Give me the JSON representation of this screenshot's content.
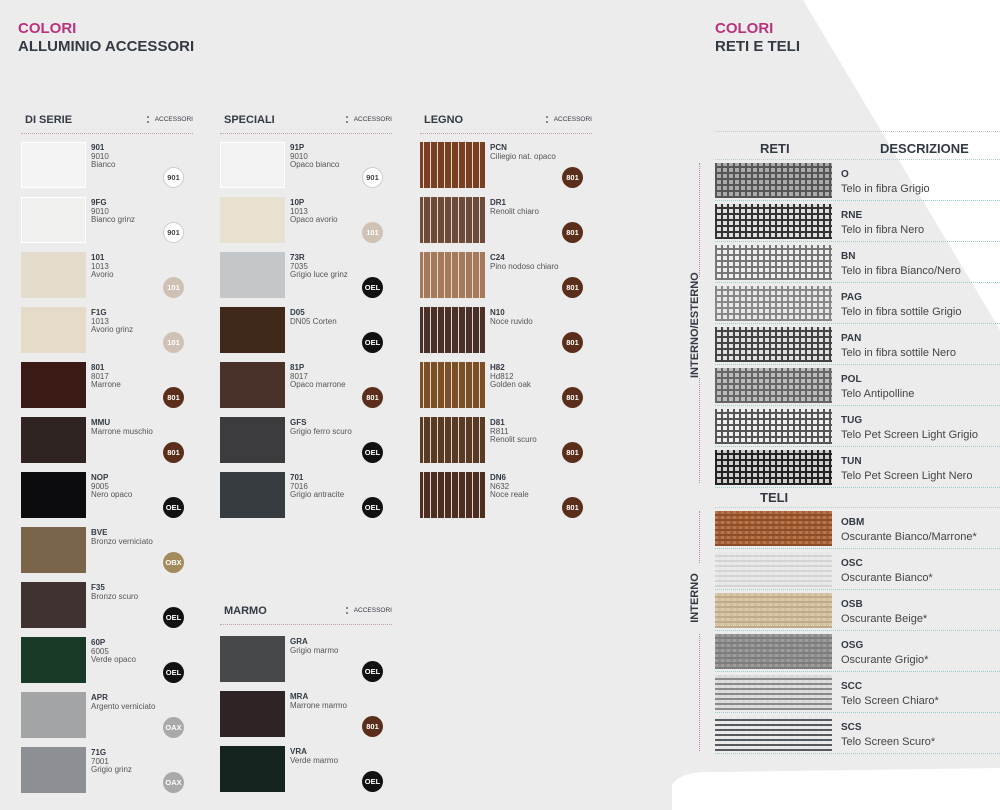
{
  "left": {
    "title1": "COLORI",
    "title2": "ALLUMINIO ACCESSORI"
  },
  "right": {
    "title1": "COLORI",
    "title2": "RETI E TELI",
    "reti_head": "RETI",
    "desc_head": "DESCRIZIONE",
    "teli_head": "TELI",
    "label_int_est": "INTERNO/ESTERNO",
    "label_int": "INTERNO"
  },
  "accessori_label": "ACCESSORI",
  "badge_colors": {
    "901": "#ffffff",
    "101": "#cfc2b4",
    "801": "#5a2e1a",
    "OEL": "#111111",
    "OBX": "#a38b5e",
    "OAX": "#a9a9a9"
  },
  "columns": [
    {
      "heading": "DI SERIE",
      "items": [
        {
          "code": "901",
          "ral": "9010",
          "name": "Bianco",
          "color": "#f4f4f4",
          "badge": "901"
        },
        {
          "code": "9FG",
          "ral": "9010",
          "name": "Bianco grinz",
          "color": "#f0f0ee",
          "badge": "901"
        },
        {
          "code": "101",
          "ral": "1013",
          "name": "Avorio",
          "color": "#e4dccc",
          "badge": "101"
        },
        {
          "code": "F1G",
          "ral": "1013",
          "name": "Avorio grinz",
          "color": "#e6dac8",
          "badge": "101"
        },
        {
          "code": "801",
          "ral": "8017",
          "name": "Marrone",
          "color": "#3a1a14",
          "badge": "801"
        },
        {
          "code": "MMU",
          "ral": "",
          "name": "Marrone muschio",
          "color": "#2f2422",
          "badge": "801"
        },
        {
          "code": "NOP",
          "ral": "9005",
          "name": "Nero opaco",
          "color": "#0c0c0e",
          "badge": "OEL"
        },
        {
          "code": "BVE",
          "ral": "",
          "name": "Bronzo verniciato",
          "color": "#7a654a",
          "badge": "OBX"
        },
        {
          "code": "F35",
          "ral": "",
          "name": "Bronzo scuro",
          "color": "#3f3230",
          "badge": "OEL"
        },
        {
          "code": "60P",
          "ral": "6005",
          "name": "Verde opaco",
          "color": "#1a3a28",
          "badge": "OEL"
        },
        {
          "code": "APR",
          "ral": "",
          "name": "Argento verniciato",
          "color": "#a3a4a6",
          "badge": "OAX"
        },
        {
          "code": "71G",
          "ral": "7001",
          "name": "Grigio grinz",
          "color": "#8c8f93",
          "badge": "OAX"
        }
      ]
    },
    {
      "heading": "SPECIALI",
      "items": [
        {
          "code": "91P",
          "ral": "9010",
          "name": "Opaco bianco",
          "color": "#f3f3f3",
          "badge": "901"
        },
        {
          "code": "10P",
          "ral": "1013",
          "name": "Opaco avorio",
          "color": "#e8e1cf",
          "badge": "101"
        },
        {
          "code": "73R",
          "ral": "7035",
          "name": "Grigio luce grinz",
          "color": "#c4c7c9",
          "badge": "OEL"
        },
        {
          "code": "D05",
          "ral": "",
          "name": "DN05 Corten",
          "color": "#40281a",
          "badge": "OEL"
        },
        {
          "code": "81P",
          "ral": "8017",
          "name": "Opaco marrone",
          "color": "#4a322a",
          "badge": "801"
        },
        {
          "code": "GFS",
          "ral": "",
          "name": "Grigio ferro scuro",
          "color": "#3c3c3e",
          "badge": "OEL"
        },
        {
          "code": "701",
          "ral": "7016",
          "name": "Grigio antracite",
          "color": "#363c40",
          "badge": "OEL"
        }
      ]
    },
    {
      "heading": "LEGNO",
      "items": [
        {
          "code": "PCN",
          "ral": "",
          "name": "Ciliegio nat. opaco",
          "color": "#7a3e20",
          "badge": "801"
        },
        {
          "code": "DR1",
          "ral": "",
          "name": "Renolit chiaro",
          "color": "#6e4a38",
          "badge": "801"
        },
        {
          "code": "C24",
          "ral": "",
          "name": "Pino nodoso chiaro",
          "color": "#a67a58",
          "badge": "801"
        },
        {
          "code": "N10",
          "ral": "",
          "name": "Noce ruvido",
          "color": "#4a3026",
          "badge": "801"
        },
        {
          "code": "H82",
          "ral": "Hd812",
          "name": "Golden oak",
          "color": "#7c5024",
          "badge": "801"
        },
        {
          "code": "D81",
          "ral": "R811",
          "name": "Renolit scuro",
          "color": "#5a3a22",
          "badge": "801"
        },
        {
          "code": "DN6",
          "ral": "N632",
          "name": "Noce reale",
          "color": "#4e2e1e",
          "badge": "801"
        }
      ]
    },
    {
      "heading": "MARMO",
      "items": [
        {
          "code": "GRA",
          "ral": "",
          "name": "Grigio marmo",
          "color": "#464849",
          "badge": "OEL"
        },
        {
          "code": "MRA",
          "ral": "",
          "name": "Marrone marmo",
          "color": "#2e2426",
          "badge": "801"
        },
        {
          "code": "VRA",
          "ral": "",
          "name": "Verde marmo",
          "color": "#16241f",
          "badge": "OEL"
        }
      ]
    }
  ],
  "reti": [
    {
      "code": "O",
      "desc": "Telo in fibra Grigio",
      "color": "#555",
      "bg": "#aaa"
    },
    {
      "code": "RNE",
      "desc": "Telo in fibra Nero",
      "color": "#333",
      "bg": "#ddd"
    },
    {
      "code": "BN",
      "desc": "Telo in fibra Bianco/Nero",
      "color": "#777",
      "bg": "#eee"
    },
    {
      "code": "PAG",
      "desc": "Telo in fibra sottile Grigio",
      "color": "#888",
      "bg": "#e8e8e8"
    },
    {
      "code": "PAN",
      "desc": "Telo in fibra sottile Nero",
      "color": "#444",
      "bg": "#e0e0e0"
    },
    {
      "code": "POL",
      "desc": "Telo Antipolline",
      "color": "#666",
      "bg": "#bbb"
    },
    {
      "code": "TUG",
      "desc": "Telo Pet Screen Light Grigio",
      "color": "#555",
      "bg": "#eee"
    },
    {
      "code": "TUN",
      "desc": "Telo Pet Screen Light Nero",
      "color": "#222",
      "bg": "#ccc"
    }
  ],
  "teli": [
    {
      "code": "OBM",
      "desc": "Oscurante Bianco/Marrone*",
      "color": "#8c4c26",
      "bg": "#a65e32"
    },
    {
      "code": "OSC",
      "desc": "Oscurante Bianco*",
      "color": "#d4d4d4",
      "bg": "#e6e6e6"
    },
    {
      "code": "OSB",
      "desc": "Oscurante Beige*",
      "color": "#c0aa88",
      "bg": "#d2bf9e"
    },
    {
      "code": "OSG",
      "desc": "Oscurante Grigio*",
      "color": "#7c7c7c",
      "bg": "#8c8c8c"
    },
    {
      "code": "SCC",
      "desc": "Telo Screen Chiaro*",
      "color": "#8a8a8a",
      "bg": "#d8d8d8"
    },
    {
      "code": "SCS",
      "desc": "Telo Screen Scuro*",
      "color": "#555a60",
      "bg": "#e8e8e8"
    }
  ]
}
